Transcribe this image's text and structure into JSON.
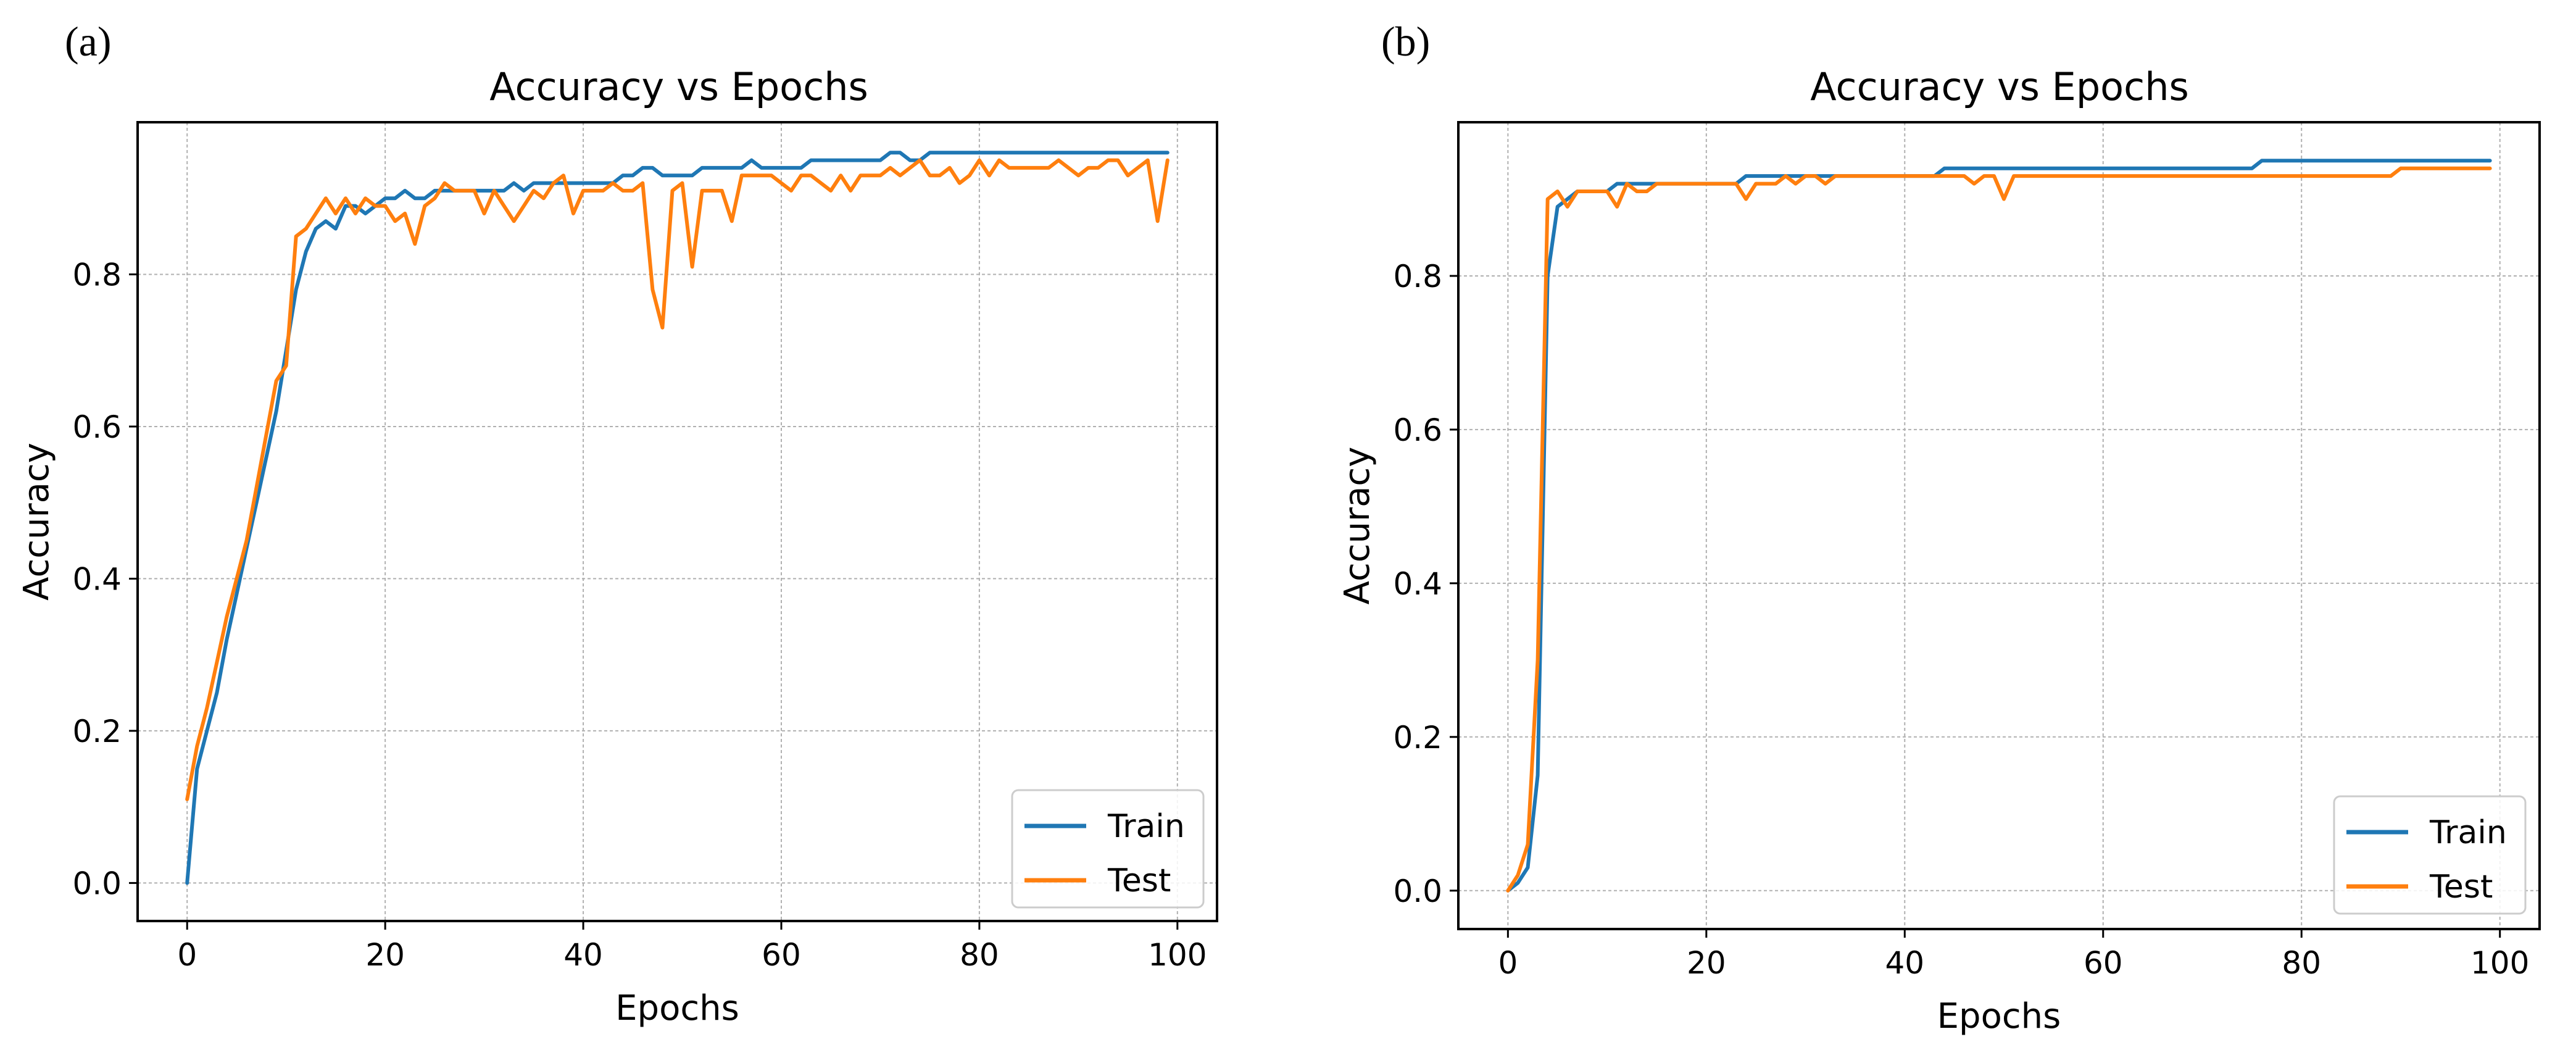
{
  "colors": {
    "train": "#1f77b4",
    "test": "#ff7f0e",
    "grid": "#b0b0b0"
  },
  "chart_data": [
    {
      "panel_label": "(a)",
      "type": "line",
      "title": "Accuracy vs Epochs",
      "xlabel": "Epochs",
      "ylabel": "Accuracy",
      "xlim": [
        -5,
        104
      ],
      "ylim": [
        -0.05,
        1.0
      ],
      "xticks": [
        0,
        20,
        40,
        60,
        80,
        100
      ],
      "yticks": [
        0.0,
        0.2,
        0.4,
        0.6,
        0.8
      ],
      "ytick_labels": [
        "0.0",
        "0.2",
        "0.4",
        "0.6",
        "0.8"
      ],
      "grid": true,
      "legend_position": "bottom-right",
      "legend": [
        "Train",
        "Test"
      ],
      "series": [
        {
          "name": "Train",
          "values": [
            0.0,
            0.15,
            0.2,
            0.25,
            0.32,
            0.38,
            0.44,
            0.5,
            0.56,
            0.62,
            0.7,
            0.78,
            0.83,
            0.86,
            0.87,
            0.86,
            0.89,
            0.89,
            0.88,
            0.89,
            0.9,
            0.9,
            0.91,
            0.9,
            0.9,
            0.91,
            0.91,
            0.91,
            0.91,
            0.91,
            0.91,
            0.91,
            0.91,
            0.92,
            0.91,
            0.92,
            0.92,
            0.92,
            0.92,
            0.92,
            0.92,
            0.92,
            0.92,
            0.92,
            0.93,
            0.93,
            0.94,
            0.94,
            0.93,
            0.93,
            0.93,
            0.93,
            0.94,
            0.94,
            0.94,
            0.94,
            0.94,
            0.95,
            0.94,
            0.94,
            0.94,
            0.94,
            0.94,
            0.95,
            0.95,
            0.95,
            0.95,
            0.95,
            0.95,
            0.95,
            0.95,
            0.96,
            0.96,
            0.95,
            0.95,
            0.96,
            0.96,
            0.96,
            0.96,
            0.96,
            0.96,
            0.96,
            0.96,
            0.96,
            0.96,
            0.96,
            0.96,
            0.96,
            0.96,
            0.96,
            0.96,
            0.96,
            0.96,
            0.96,
            0.96,
            0.96,
            0.96,
            0.96,
            0.96,
            0.96
          ]
        },
        {
          "name": "Test",
          "values": [
            0.11,
            0.18,
            0.23,
            0.29,
            0.35,
            0.4,
            0.45,
            0.52,
            0.59,
            0.66,
            0.68,
            0.85,
            0.86,
            0.88,
            0.9,
            0.88,
            0.9,
            0.88,
            0.9,
            0.89,
            0.89,
            0.87,
            0.88,
            0.84,
            0.89,
            0.9,
            0.92,
            0.91,
            0.91,
            0.91,
            0.88,
            0.91,
            0.89,
            0.87,
            0.89,
            0.91,
            0.9,
            0.92,
            0.93,
            0.88,
            0.91,
            0.91,
            0.91,
            0.92,
            0.91,
            0.91,
            0.92,
            0.78,
            0.73,
            0.91,
            0.92,
            0.81,
            0.91,
            0.91,
            0.91,
            0.87,
            0.93,
            0.93,
            0.93,
            0.93,
            0.92,
            0.91,
            0.93,
            0.93,
            0.92,
            0.91,
            0.93,
            0.91,
            0.93,
            0.93,
            0.93,
            0.94,
            0.93,
            0.94,
            0.95,
            0.93,
            0.93,
            0.94,
            0.92,
            0.93,
            0.95,
            0.93,
            0.95,
            0.94,
            0.94,
            0.94,
            0.94,
            0.94,
            0.95,
            0.94,
            0.93,
            0.94,
            0.94,
            0.95,
            0.95,
            0.93,
            0.94,
            0.95,
            0.87,
            0.95
          ]
        }
      ]
    },
    {
      "panel_label": "(b)",
      "type": "line",
      "title": "Accuracy vs Epochs",
      "xlabel": "Epochs",
      "ylabel": "Accuracy",
      "xlim": [
        -5,
        104
      ],
      "ylim": [
        -0.05,
        1.0
      ],
      "xticks": [
        0,
        20,
        40,
        60,
        80,
        100
      ],
      "yticks": [
        0.0,
        0.2,
        0.4,
        0.6,
        0.8
      ],
      "ytick_labels": [
        "0.0",
        "0.2",
        "0.4",
        "0.6",
        "0.8"
      ],
      "grid": true,
      "legend_position": "bottom-right",
      "legend": [
        "Train",
        "Test"
      ],
      "series": [
        {
          "name": "Train",
          "values": [
            0.0,
            0.01,
            0.03,
            0.15,
            0.8,
            0.89,
            0.9,
            0.91,
            0.91,
            0.91,
            0.91,
            0.92,
            0.92,
            0.92,
            0.92,
            0.92,
            0.92,
            0.92,
            0.92,
            0.92,
            0.92,
            0.92,
            0.92,
            0.92,
            0.93,
            0.93,
            0.93,
            0.93,
            0.93,
            0.93,
            0.93,
            0.93,
            0.93,
            0.93,
            0.93,
            0.93,
            0.93,
            0.93,
            0.93,
            0.93,
            0.93,
            0.93,
            0.93,
            0.93,
            0.94,
            0.94,
            0.94,
            0.94,
            0.94,
            0.94,
            0.94,
            0.94,
            0.94,
            0.94,
            0.94,
            0.94,
            0.94,
            0.94,
            0.94,
            0.94,
            0.94,
            0.94,
            0.94,
            0.94,
            0.94,
            0.94,
            0.94,
            0.94,
            0.94,
            0.94,
            0.94,
            0.94,
            0.94,
            0.94,
            0.94,
            0.94,
            0.95,
            0.95,
            0.95,
            0.95,
            0.95,
            0.95,
            0.95,
            0.95,
            0.95,
            0.95,
            0.95,
            0.95,
            0.95,
            0.95,
            0.95,
            0.95,
            0.95,
            0.95,
            0.95,
            0.95,
            0.95,
            0.95,
            0.95,
            0.95
          ]
        },
        {
          "name": "Test",
          "values": [
            0.0,
            0.02,
            0.06,
            0.3,
            0.9,
            0.91,
            0.89,
            0.91,
            0.91,
            0.91,
            0.91,
            0.89,
            0.92,
            0.91,
            0.91,
            0.92,
            0.92,
            0.92,
            0.92,
            0.92,
            0.92,
            0.92,
            0.92,
            0.92,
            0.9,
            0.92,
            0.92,
            0.92,
            0.93,
            0.92,
            0.93,
            0.93,
            0.92,
            0.93,
            0.93,
            0.93,
            0.93,
            0.93,
            0.93,
            0.93,
            0.93,
            0.93,
            0.93,
            0.93,
            0.93,
            0.93,
            0.93,
            0.92,
            0.93,
            0.93,
            0.9,
            0.93,
            0.93,
            0.93,
            0.93,
            0.93,
            0.93,
            0.93,
            0.93,
            0.93,
            0.93,
            0.93,
            0.93,
            0.93,
            0.93,
            0.93,
            0.93,
            0.93,
            0.93,
            0.93,
            0.93,
            0.93,
            0.93,
            0.93,
            0.93,
            0.93,
            0.93,
            0.93,
            0.93,
            0.93,
            0.93,
            0.93,
            0.93,
            0.93,
            0.93,
            0.93,
            0.93,
            0.93,
            0.93,
            0.93,
            0.94,
            0.94,
            0.94,
            0.94,
            0.94,
            0.94,
            0.94,
            0.94,
            0.94,
            0.94
          ]
        }
      ]
    }
  ]
}
